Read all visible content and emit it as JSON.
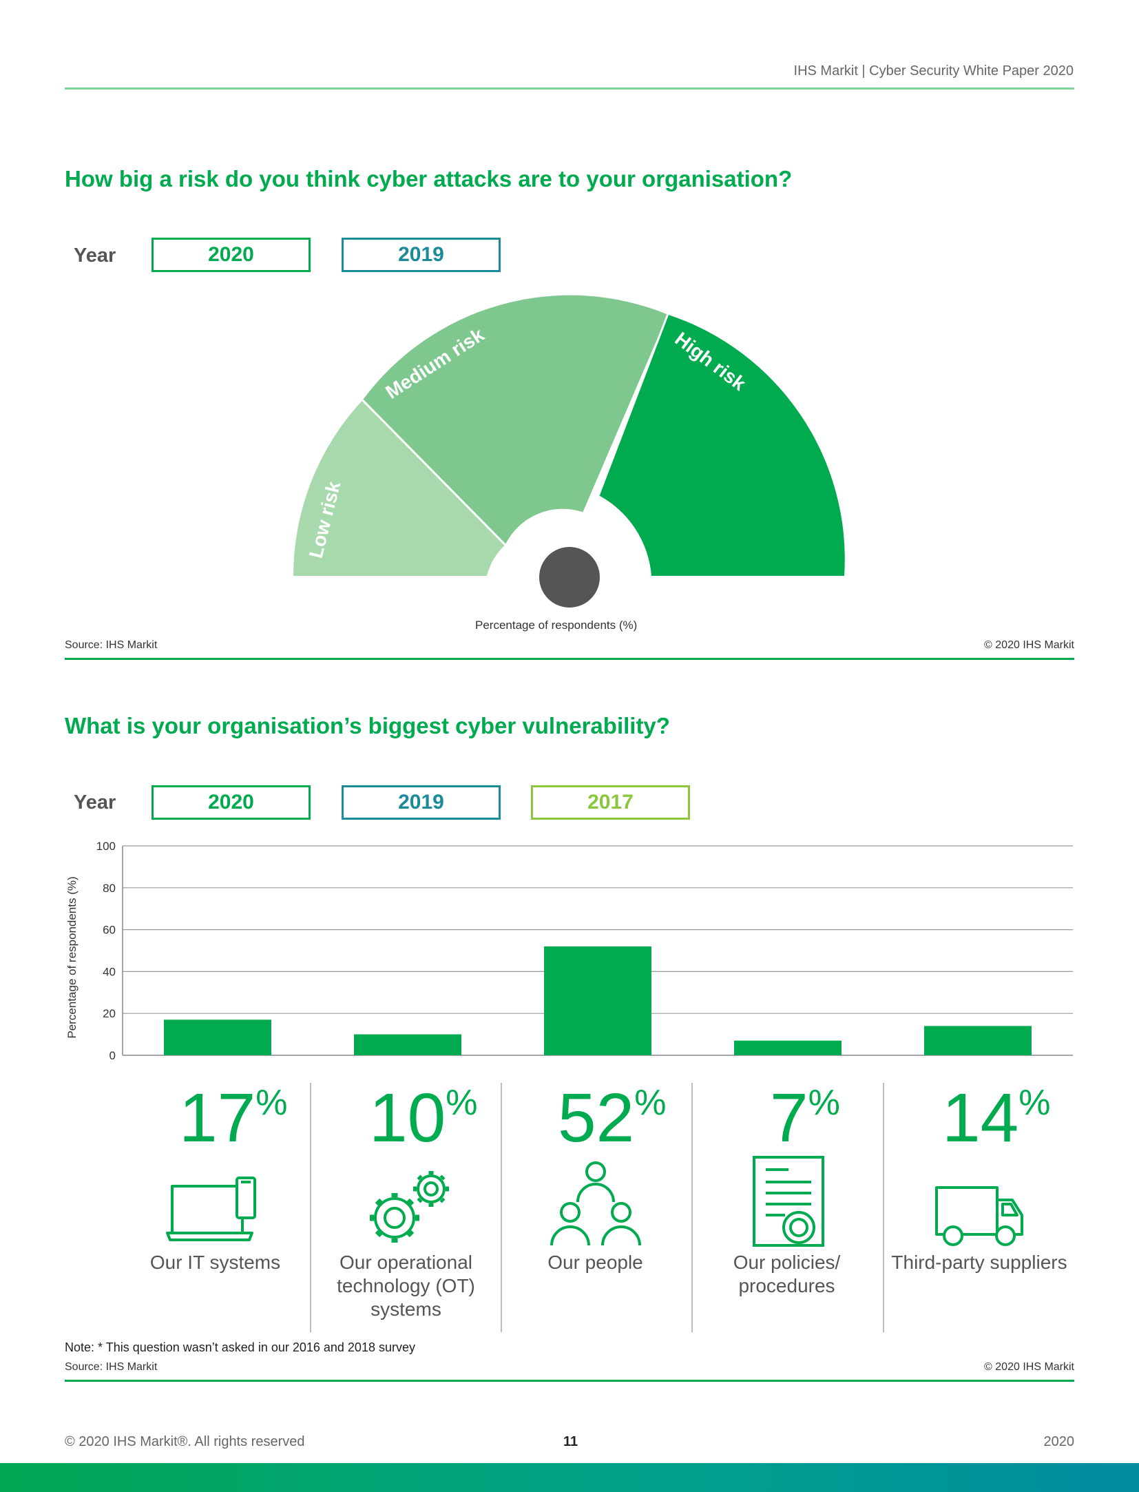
{
  "header": {
    "text": "IHS Markit  |  Cyber Security White Paper  2020"
  },
  "section1": {
    "title": "How big a risk do you think cyber attacks are to your organisation?",
    "year_label": "Year",
    "years": [
      {
        "label": "2020",
        "color": "#00aa4f"
      },
      {
        "label": "2019",
        "color": "#1b8a99"
      }
    ],
    "gauge": {
      "segments": [
        {
          "label": "Low risk",
          "color": "#a8d9ac"
        },
        {
          "label": "Medium risk",
          "color": "#7ec78f"
        },
        {
          "label": "High risk",
          "color": "#00aa4f"
        }
      ],
      "caption": "Percentage of respondents (%)"
    },
    "source": "Source: IHS Markit",
    "copyright": "© 2020 IHS Markit"
  },
  "section2": {
    "title": "What is your organisation’s biggest cyber vulnerability?",
    "year_label": "Year",
    "years": [
      {
        "label": "2020",
        "color": "#00aa4f"
      },
      {
        "label": "2019",
        "color": "#1b8a99"
      },
      {
        "label": "2017",
        "color": "#8cc63f"
      }
    ],
    "items": [
      {
        "value": "17",
        "unit": "%",
        "label": "Our IT systems",
        "icon": "laptop-phone-icon"
      },
      {
        "value": "10",
        "unit": "%",
        "label": "Our operational technology (OT) systems",
        "icon": "gears-icon"
      },
      {
        "value": "52",
        "unit": "%",
        "label": "Our people",
        "icon": "people-icon"
      },
      {
        "value": "7",
        "unit": "%",
        "label": "Our policies/ procedures",
        "icon": "certificate-icon"
      },
      {
        "value": "14",
        "unit": "%",
        "label": "Third-party suppliers",
        "icon": "truck-icon"
      }
    ],
    "note": "Note: * This question wasn’t asked in our 2016 and 2018 survey",
    "source": "Source: IHS Markit",
    "copyright": "© 2020 IHS Markit"
  },
  "chart_data": {
    "type": "bar",
    "categories": [
      "Our IT systems",
      "Our operational technology (OT) systems",
      "Our people",
      "Our policies/ procedures",
      "Third-party suppliers"
    ],
    "values": [
      17,
      10,
      52,
      7,
      14
    ],
    "ylabel": "Percentage of respondents (%)",
    "ylim": [
      0,
      100
    ],
    "yticks": [
      0,
      20,
      40,
      60,
      80,
      100
    ],
    "bar_color": "#00aa4f",
    "grid": true
  },
  "footer": {
    "left": "© 2020 IHS Markit®. All rights reserved",
    "page": "11",
    "right": "2020"
  }
}
